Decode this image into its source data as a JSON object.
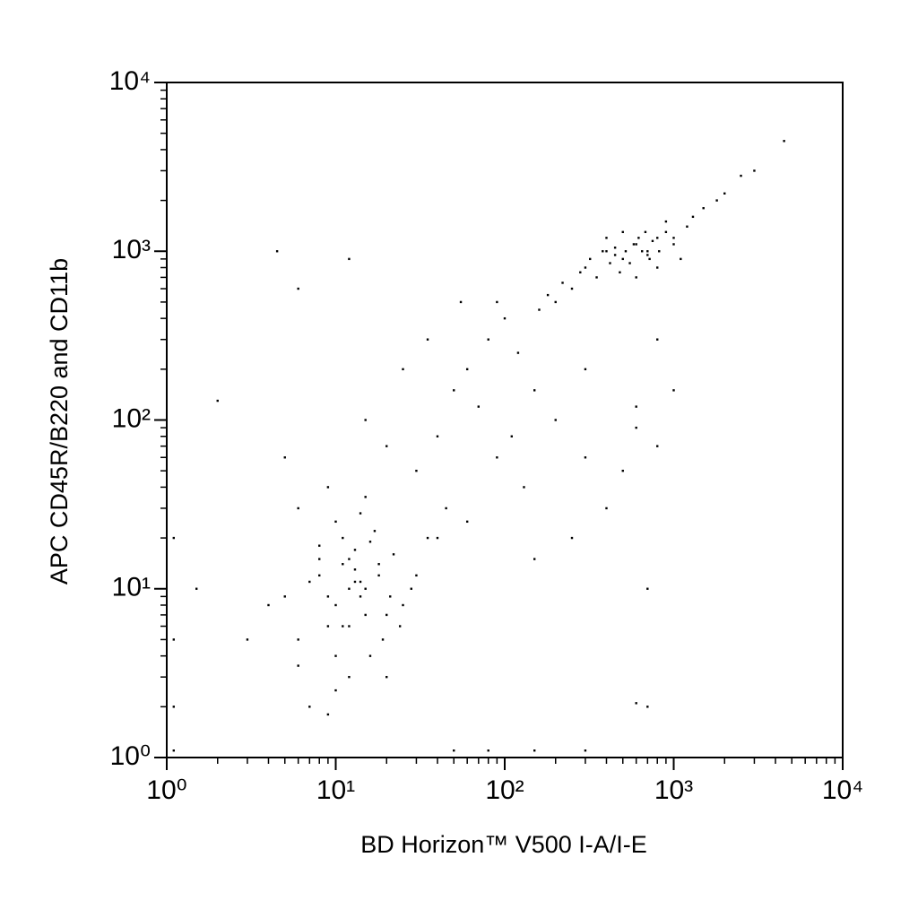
{
  "chart_data": {
    "type": "scatter",
    "x_label": "BD Horizon™ V500 I-A/I-E",
    "y_label": "APC CD45R/B220 and CD11b",
    "log_x": true,
    "log_y": true,
    "color": "#000000",
    "xlim": [
      1,
      10000
    ],
    "ylim": [
      1,
      10000
    ],
    "xticks": [
      {
        "value": 1,
        "label": "10⁰"
      },
      {
        "value": 10,
        "label": "10¹"
      },
      {
        "value": 100,
        "label": "10²"
      },
      {
        "value": 1000,
        "label": "10³"
      },
      {
        "value": 10000,
        "label": "10⁴"
      }
    ],
    "yticks": [
      {
        "value": 1,
        "label": "10⁰"
      },
      {
        "value": 10,
        "label": "10¹"
      },
      {
        "value": 100,
        "label": "10²"
      },
      {
        "value": 1000,
        "label": "10³"
      },
      {
        "value": 10000,
        "label": "10⁴"
      }
    ],
    "xminorticks": [
      2,
      3,
      4,
      5,
      6,
      7,
      8,
      9,
      20,
      30,
      40,
      50,
      60,
      70,
      80,
      90,
      200,
      300,
      400,
      500,
      600,
      700,
      800,
      900,
      2000,
      3000,
      4000,
      5000,
      6000,
      7000,
      8000,
      9000
    ],
    "yminorticks": [
      2,
      3,
      4,
      5,
      6,
      7,
      8,
      9,
      20,
      30,
      40,
      50,
      60,
      70,
      80,
      90,
      200,
      300,
      400,
      500,
      600,
      700,
      800,
      900,
      2000,
      3000,
      4000,
      5000,
      6000,
      7000,
      8000,
      9000
    ],
    "x": [
      8,
      10,
      12,
      15,
      9,
      11,
      14,
      18,
      20,
      7,
      6,
      13,
      16,
      10,
      12,
      9,
      22,
      25,
      8,
      11,
      14,
      17,
      19,
      30,
      6,
      5,
      10,
      13,
      15,
      9,
      12,
      20,
      7,
      11,
      16,
      24,
      28,
      35,
      4,
      3,
      9,
      14,
      18,
      10,
      12,
      8,
      21,
      13,
      6,
      15,
      300,
      400,
      500,
      600,
      700,
      800,
      350,
      450,
      550,
      650,
      750,
      900,
      250,
      200,
      1000,
      1200,
      1500,
      320,
      420,
      520,
      620,
      720,
      820,
      480,
      580,
      680,
      380,
      280,
      220,
      1100,
      1300,
      1800,
      2000,
      2500,
      3000,
      160,
      180,
      400,
      600,
      900,
      700,
      500,
      800,
      1000,
      450,
      30,
      40,
      50,
      60,
      80,
      100,
      120,
      150,
      70,
      90,
      45,
      35,
      25,
      55,
      110,
      130,
      200,
      300,
      500,
      800,
      400,
      600,
      250,
      1000,
      700,
      150,
      60,
      20,
      15,
      5,
      40,
      90,
      300,
      800,
      600,
      4.5,
      2,
      6,
      12,
      1.1,
      1.1,
      1.1,
      1.1,
      700,
      4500,
      1.5,
      600,
      50,
      80,
      150,
      300
    ],
    "y": [
      12,
      8,
      15,
      10,
      6,
      20,
      9,
      14,
      7,
      11,
      5,
      13,
      4,
      25,
      3,
      9,
      16,
      8,
      18,
      6,
      11,
      22,
      5,
      12,
      30,
      9,
      2.5,
      17,
      7,
      40,
      10,
      3,
      2,
      14,
      19,
      6,
      10,
      20,
      8,
      5,
      1.8,
      28,
      12,
      4,
      6,
      15,
      9,
      11,
      3.5,
      35,
      800,
      1000,
      900,
      1100,
      950,
      1200,
      700,
      1050,
      850,
      1000,
      1150,
      1300,
      600,
      500,
      1100,
      1400,
      1800,
      900,
      850,
      1000,
      1200,
      900,
      1000,
      750,
      1100,
      1300,
      1000,
      750,
      650,
      900,
      1600,
      2000,
      2200,
      2800,
      3000,
      450,
      550,
      1200,
      700,
      1500,
      1000,
      1300,
      800,
      1200,
      950,
      50,
      80,
      150,
      200,
      300,
      400,
      250,
      150,
      120,
      60,
      30,
      300,
      200,
      500,
      80,
      40,
      100,
      60,
      50,
      70,
      30,
      90,
      20,
      150,
      10,
      15,
      25,
      70,
      100,
      60,
      20,
      500,
      200,
      300,
      120,
      1000,
      130,
      600,
      900,
      20,
      5,
      2,
      1.1,
      2,
      4500,
      10,
      2.1,
      1.1,
      1.1,
      1.1,
      1.1
    ]
  }
}
